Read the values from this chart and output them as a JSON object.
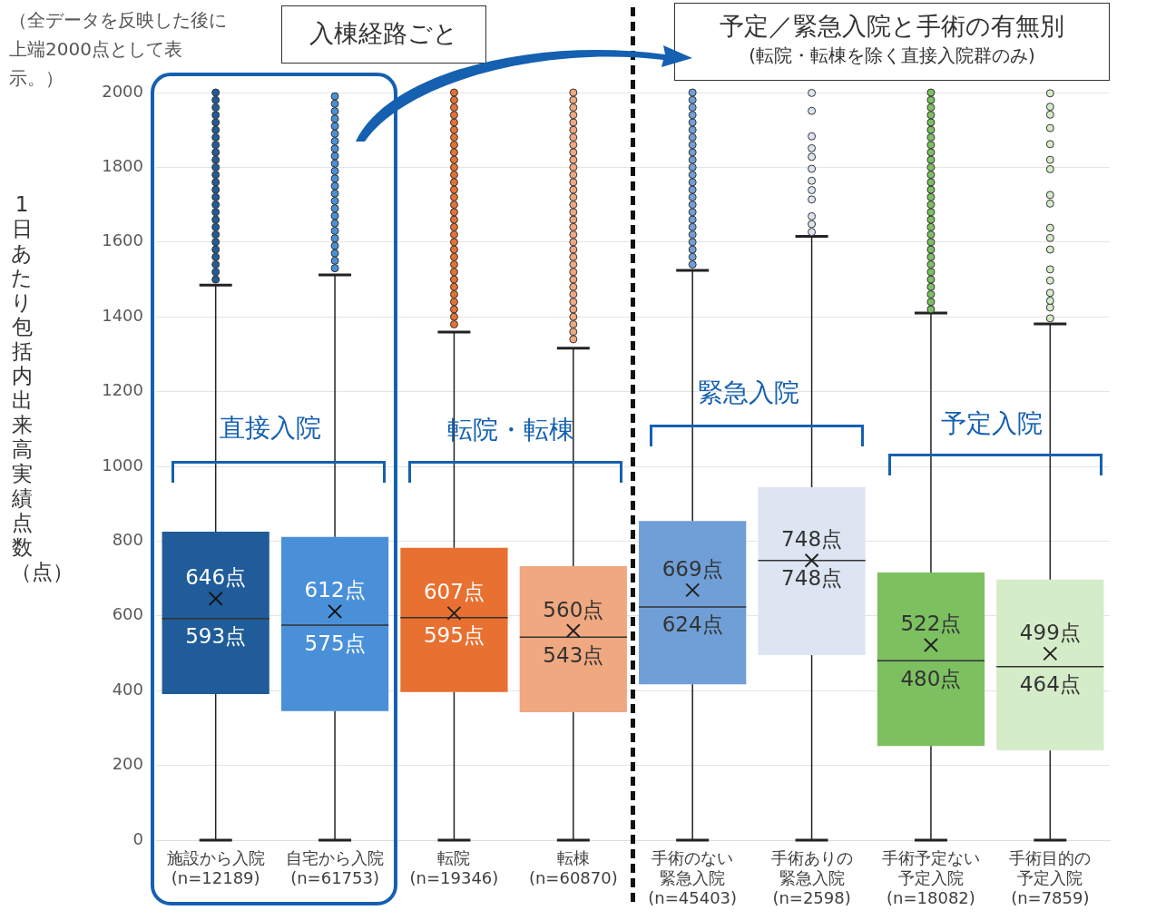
{
  "chart_data": {
    "type": "box",
    "ylabel": "1日あたり包括内出来高実績点数（点）",
    "categories": [
      "施設から入院 (n=12189)",
      "自宅から入院 (n=61753)",
      "転院 (n=19346)",
      "転棟 (n=60870)",
      "手術のない緊急入院 (n=45403)",
      "手術ありの緊急入院 (n=2598)",
      "手術予定ない予定入院 (n=18082)",
      "手術目的の予定入院 (n=7859)"
    ],
    "colors": [
      "#1f5c99",
      "#4a90d9",
      "#e87030",
      "#f0a880",
      "#6f9fd6",
      "#dde5f2",
      "#7cc060",
      "#d4ecc8"
    ],
    "boxes": [
      {
        "low": 0,
        "q1": 391,
        "median": 593,
        "q3": 825,
        "high": 1485,
        "mean": 646,
        "outliers": [
          1500,
          1520,
          1540,
          1560,
          1580,
          1600,
          1620,
          1640,
          1660,
          1680,
          1700,
          1720,
          1740,
          1760,
          1780,
          1800,
          1820,
          1840,
          1860,
          1880,
          1900,
          1920,
          1940,
          1960,
          1980,
          2000
        ]
      },
      {
        "low": 0,
        "q1": 345,
        "median": 575,
        "q3": 811,
        "high": 1512,
        "mean": 612,
        "outliers": [
          1530,
          1550,
          1570,
          1590,
          1610,
          1630,
          1650,
          1670,
          1690,
          1710,
          1730,
          1750,
          1770,
          1790,
          1810,
          1830,
          1850,
          1870,
          1890,
          1910,
          1930,
          1950,
          1970,
          1990
        ]
      },
      {
        "low": 0,
        "q1": 396,
        "median": 595,
        "q3": 782,
        "high": 1359,
        "mean": 607,
        "outliers": [
          1380,
          1400,
          1420,
          1440,
          1460,
          1480,
          1500,
          1520,
          1540,
          1560,
          1580,
          1600,
          1620,
          1640,
          1660,
          1680,
          1700,
          1720,
          1740,
          1760,
          1780,
          1800,
          1820,
          1840,
          1860,
          1880,
          1900,
          1920,
          1940,
          1960,
          1980,
          2000
        ]
      },
      {
        "low": 0,
        "q1": 342,
        "median": 543,
        "q3": 733,
        "high": 1316,
        "mean": 560,
        "outliers": [
          1340,
          1360,
          1380,
          1400,
          1420,
          1440,
          1460,
          1480,
          1500,
          1520,
          1540,
          1560,
          1580,
          1600,
          1620,
          1640,
          1660,
          1680,
          1700,
          1720,
          1740,
          1760,
          1780,
          1800,
          1820,
          1840,
          1860,
          1880,
          1900,
          1920,
          1940,
          1960,
          1980,
          2000
        ]
      },
      {
        "low": 0,
        "q1": 417,
        "median": 624,
        "q3": 854,
        "high": 1524,
        "mean": 669,
        "outliers": [
          1540,
          1560,
          1580,
          1600,
          1620,
          1640,
          1660,
          1680,
          1700,
          1720,
          1740,
          1760,
          1780,
          1800,
          1820,
          1840,
          1860,
          1880,
          1900,
          1920,
          1940,
          1960,
          1980,
          2000
        ]
      },
      {
        "low": 0,
        "q1": 495,
        "median": 748,
        "q3": 944,
        "high": 1615,
        "mean": 748,
        "outliers": [
          1627,
          1648,
          1669,
          1714,
          1739,
          1764,
          1796,
          1828,
          1851,
          1883,
          1951,
          1999
        ]
      },
      {
        "low": 0,
        "q1": 252,
        "median": 480,
        "q3": 716,
        "high": 1410,
        "mean": 522,
        "outliers": [
          1420,
          1440,
          1460,
          1480,
          1500,
          1520,
          1540,
          1560,
          1580,
          1600,
          1620,
          1640,
          1660,
          1680,
          1700,
          1720,
          1740,
          1760,
          1780,
          1800,
          1820,
          1840,
          1860,
          1880,
          1900,
          1920,
          1940,
          1960,
          1980,
          2000
        ]
      },
      {
        "low": 0,
        "q1": 240,
        "median": 464,
        "q3": 697,
        "high": 1381,
        "mean": 499,
        "outliers": [
          1396,
          1425,
          1443,
          1464,
          1497,
          1527,
          1580,
          1611,
          1638,
          1703,
          1726,
          1795,
          1820,
          1862,
          1905,
          1941,
          1962,
          1998
        ]
      }
    ],
    "ylim": [
      0,
      2000
    ],
    "yticks": [
      0,
      200,
      400,
      600,
      800,
      1000,
      1200,
      1400,
      1600,
      1800,
      2000
    ],
    "grid": "y",
    "legend": false,
    "annotations": [
      "（全データを反映した後に上端2000点として表示。）",
      "入棟経路ごと",
      "予定／緊急入院と手術の有無別",
      "(転院・転棟を除く直接入院群のみ)",
      "直接入院",
      "転院・転棟",
      "緊急入院",
      "予定入院",
      "646点",
      "593点",
      "612点",
      "575点",
      "607点",
      "595点",
      "560点",
      "543点",
      "669点",
      "624点",
      "748点",
      "748点",
      "522点",
      "480点",
      "499点",
      "464点"
    ]
  }
}
